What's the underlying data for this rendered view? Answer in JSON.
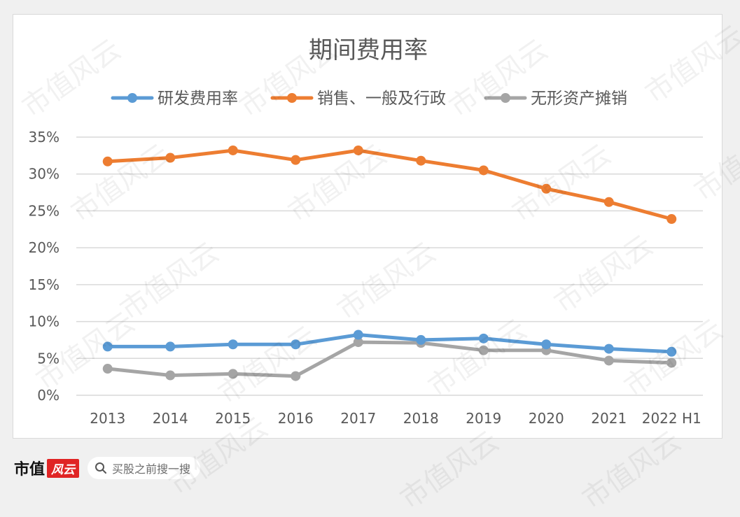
{
  "chart_data": {
    "type": "line",
    "title": "期间费用率",
    "categories": [
      "2013",
      "2014",
      "2015",
      "2016",
      "2017",
      "2018",
      "2019",
      "2020",
      "2021",
      "2022 H1"
    ],
    "ylim": [
      0,
      35
    ],
    "yticks": [
      "0%",
      "5%",
      "10%",
      "15%",
      "20%",
      "25%",
      "30%",
      "35%"
    ],
    "ytick_values": [
      0,
      5,
      10,
      15,
      20,
      25,
      30,
      35
    ],
    "grid": true,
    "legend_position": "top",
    "series": [
      {
        "name": "研发费用率",
        "color": "#5b9bd5",
        "values": [
          6.6,
          6.6,
          6.9,
          6.9,
          8.2,
          7.5,
          7.7,
          6.9,
          6.3,
          5.9
        ]
      },
      {
        "name": "销售、一般及行政",
        "color": "#ed7d31",
        "values": [
          31.7,
          32.2,
          33.2,
          31.9,
          33.2,
          31.8,
          30.5,
          28.0,
          26.2,
          23.9
        ]
      },
      {
        "name": "无形资产摊销",
        "color": "#a5a5a5",
        "values": [
          3.6,
          2.7,
          2.9,
          2.6,
          7.2,
          7.1,
          6.1,
          6.1,
          4.7,
          4.4
        ]
      }
    ]
  },
  "footer": {
    "brand": "市值",
    "brand_mark": "风云",
    "search_text": "买股之前搜一搜"
  },
  "watermark_text": "市值风云"
}
